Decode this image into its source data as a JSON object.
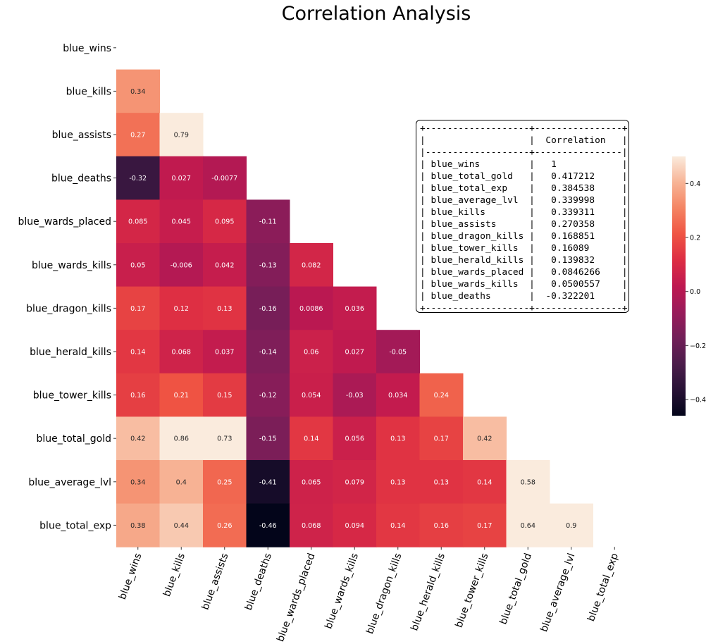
{
  "title": "Correlation Analysis",
  "chart_data": {
    "type": "heatmap",
    "title": "Correlation Analysis",
    "mask": "upper-triangle-including-diagonal",
    "labels": [
      "blue_wins",
      "blue_kills",
      "blue_assists",
      "blue_deaths",
      "blue_wards_placed",
      "blue_wards_kills",
      "blue_dragon_kills",
      "blue_herald_kills",
      "blue_tower_kills",
      "blue_total_gold",
      "blue_average_lvl",
      "blue_total_exp"
    ],
    "rows": [
      [],
      [
        "0.34"
      ],
      [
        "0.27",
        "0.79"
      ],
      [
        "-0.32",
        "0.027",
        "-0.0077"
      ],
      [
        "0.085",
        "0.045",
        "0.095",
        "-0.11"
      ],
      [
        "0.05",
        "-0.006",
        "0.042",
        "-0.13",
        "0.082"
      ],
      [
        "0.17",
        "0.12",
        "0.13",
        "-0.16",
        "0.0086",
        "0.036"
      ],
      [
        "0.14",
        "0.068",
        "0.037",
        "-0.14",
        "0.06",
        "0.027",
        "-0.05"
      ],
      [
        "0.16",
        "0.21",
        "0.15",
        "-0.12",
        "0.054",
        "-0.03",
        "0.034",
        "0.24"
      ],
      [
        "0.42",
        "0.86",
        "0.73",
        "-0.15",
        "0.14",
        "0.056",
        "0.13",
        "0.17",
        "0.42"
      ],
      [
        "0.34",
        "0.4",
        "0.25",
        "-0.41",
        "0.065",
        "0.079",
        "0.13",
        "0.13",
        "0.14",
        "0.58"
      ],
      [
        "0.38",
        "0.44",
        "0.26",
        "-0.46",
        "0.068",
        "0.094",
        "0.14",
        "0.16",
        "0.17",
        "0.64",
        "0.9"
      ]
    ],
    "colorbar": {
      "vmin": -0.46,
      "vmax": 0.5,
      "ticks": [
        "0.4",
        "0.2",
        "0.0",
        "-0.2",
        "-0.4"
      ],
      "colormap": "rocket"
    },
    "grid": false
  },
  "stats_table": {
    "header": "Correlation",
    "rows": [
      [
        "blue_wins",
        "1"
      ],
      [
        "blue_total_gold",
        "0.417212"
      ],
      [
        "blue_total_exp",
        "0.384538"
      ],
      [
        "blue_average_lvl",
        "0.339998"
      ],
      [
        "blue_kills",
        "0.339311"
      ],
      [
        "blue_assists",
        "0.270358"
      ],
      [
        "blue_dragon_kills",
        "0.168851"
      ],
      [
        "blue_tower_kills",
        "0.16089"
      ],
      [
        "blue_herald_kills",
        "0.139832"
      ],
      [
        "blue_wards_placed",
        "0.0846266"
      ],
      [
        "blue_wards_kills",
        "0.0500557"
      ],
      [
        "blue_deaths",
        "-0.322201"
      ]
    ]
  }
}
